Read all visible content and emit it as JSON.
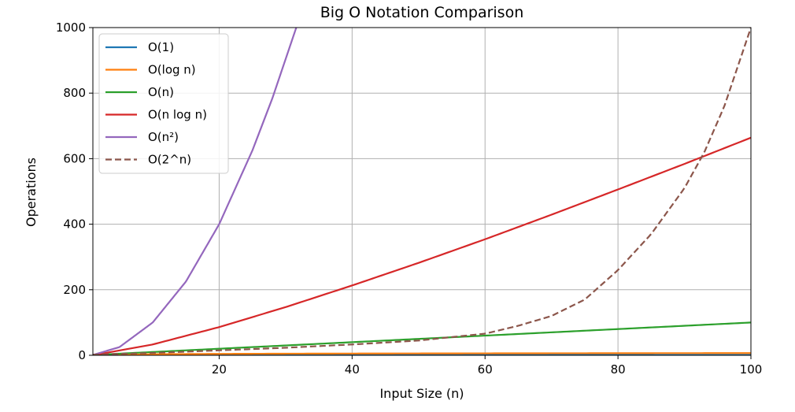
{
  "chart_data": {
    "type": "line",
    "title": "Big O Notation Comparison",
    "xlabel": "Input Size (n)",
    "ylabel": "Operations",
    "xlim": [
      1,
      100
    ],
    "ylim": [
      0,
      1000
    ],
    "xticks": [
      20,
      40,
      60,
      80,
      100
    ],
    "xtick_labels": [
      "20",
      "40",
      "60",
      "80",
      "100"
    ],
    "yticks": [
      0,
      200,
      400,
      600,
      800,
      1000
    ],
    "ytick_labels": [
      "0",
      "200",
      "400",
      "600",
      "800",
      "1000"
    ],
    "grid": true,
    "legend_position": "top-left",
    "series": [
      {
        "name": "O(1)",
        "color": "#1f77b4",
        "dash": false,
        "x": [
          1,
          10,
          20,
          30,
          40,
          50,
          60,
          70,
          80,
          90,
          100
        ],
        "y": [
          1,
          1,
          1,
          1,
          1,
          1,
          1,
          1,
          1,
          1,
          1
        ]
      },
      {
        "name": "O(log n)",
        "color": "#ff7f0e",
        "dash": false,
        "x": [
          1,
          10,
          20,
          30,
          40,
          50,
          60,
          70,
          80,
          90,
          100
        ],
        "y": [
          0,
          3.3,
          4.3,
          4.9,
          5.3,
          5.6,
          5.9,
          6.1,
          6.3,
          6.5,
          6.6
        ]
      },
      {
        "name": "O(n)",
        "color": "#2ca02c",
        "dash": false,
        "x": [
          1,
          10,
          20,
          30,
          40,
          50,
          60,
          70,
          80,
          90,
          100
        ],
        "y": [
          1,
          10,
          20,
          30,
          40,
          50,
          60,
          70,
          80,
          90,
          100
        ]
      },
      {
        "name": "O(n log n)",
        "color": "#d62728",
        "dash": false,
        "x": [
          1,
          10,
          20,
          30,
          40,
          50,
          60,
          70,
          80,
          90,
          100
        ],
        "y": [
          0,
          33,
          86,
          147,
          213,
          282,
          354,
          429,
          506,
          584,
          664
        ]
      },
      {
        "name": "O(n²)",
        "color": "#9467bd",
        "dash": false,
        "x": [
          1,
          5,
          10,
          15,
          20,
          25,
          28,
          31.6
        ],
        "y": [
          1,
          25,
          100,
          225,
          400,
          625,
          784,
          1000
        ]
      },
      {
        "name": "O(2^n)",
        "color": "#8c564b",
        "dash": true,
        "x": [
          1,
          10,
          20,
          30,
          40,
          50,
          60,
          65,
          70,
          75,
          80,
          85,
          90,
          93,
          96,
          100
        ],
        "y": [
          2,
          7,
          15,
          23,
          33,
          45,
          66,
          90,
          120,
          170,
          260,
          370,
          510,
          620,
          760,
          1000
        ]
      }
    ]
  }
}
